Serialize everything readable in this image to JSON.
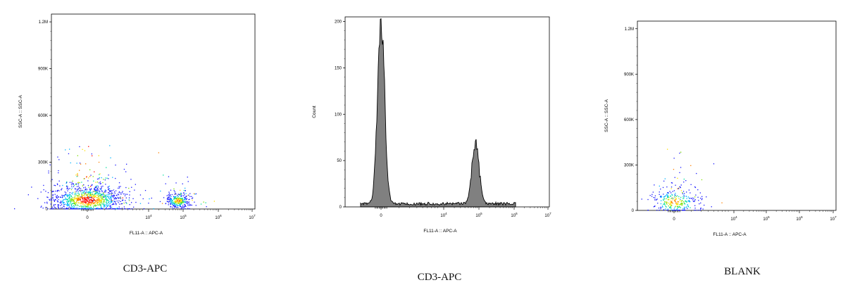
{
  "chart_data": [
    {
      "type": "scatter",
      "title": "CD3-APC",
      "xlabel": "FL11-A :: APC-A",
      "ylabel": "SSC-A :: SSC-A",
      "x_scale": "biexponential",
      "xlim": [
        -2000,
        10000000
      ],
      "ylim": [
        0,
        1250000
      ],
      "x_ticks": [
        {
          "value": 0,
          "base": "0",
          "exp": ""
        },
        {
          "value": 10000,
          "base": "10",
          "exp": "4"
        },
        {
          "value": 100000,
          "base": "10",
          "exp": "5"
        },
        {
          "value": 1000000,
          "base": "10",
          "exp": "6"
        },
        {
          "value": 10000000,
          "base": "10",
          "exp": "7"
        }
      ],
      "y_ticks": [
        {
          "value": 0,
          "label": "0"
        },
        {
          "value": 300000,
          "label": "300K"
        },
        {
          "value": 600000,
          "label": "600K"
        },
        {
          "value": 900000,
          "label": "900K"
        },
        {
          "value": 1200000,
          "label": "1.2M"
        }
      ],
      "populations": [
        {
          "name": "",
          "x_center": 0,
          "y_center": 60000,
          "count": 1100,
          "x_spread": 0.55,
          "y_spread": 45000
        },
        {
          "name": "",
          "x_center": 70000,
          "y_center": 55000,
          "count": 320,
          "x_spread": 0.18,
          "y_spread": 25000
        }
      ],
      "color_scale": [
        "#1a1aff",
        "#00b4ff",
        "#00e0a0",
        "#7ee000",
        "#ffe000",
        "#ff8000",
        "#ff0000"
      ],
      "grid": false
    },
    {
      "type": "area",
      "title": "CD3-APC",
      "xlabel": "FL11-A :: APC-A",
      "ylabel": "Count",
      "x_scale": "biexponential",
      "xlim": [
        -2000,
        10000000
      ],
      "ylim": [
        0,
        205
      ],
      "x_ticks": [
        {
          "value": 0,
          "base": "0",
          "exp": ""
        },
        {
          "value": 10000,
          "base": "10",
          "exp": "4"
        },
        {
          "value": 100000,
          "base": "10",
          "exp": "5"
        },
        {
          "value": 1000000,
          "base": "10",
          "exp": "6"
        },
        {
          "value": 10000000,
          "base": "10",
          "exp": "7"
        }
      ],
      "y_ticks": [
        {
          "value": 0,
          "label": "0"
        },
        {
          "value": 50,
          "label": "50"
        },
        {
          "value": 100,
          "label": "100"
        },
        {
          "value": 150,
          "label": "150"
        },
        {
          "value": 200,
          "label": "200"
        }
      ],
      "peaks": [
        {
          "x_center": 0,
          "height": 200,
          "width": 0.1
        },
        {
          "x_center": 80000,
          "height": 66,
          "width": 0.1
        }
      ],
      "fill_color": "#808080",
      "grid": false
    },
    {
      "type": "scatter",
      "title": "BLANK",
      "xlabel": "FL11-A :: APC-A",
      "ylabel": "SSC-A :: SSC-A",
      "x_scale": "biexponential",
      "xlim": [
        -2000,
        10000000
      ],
      "ylim": [
        0,
        1250000
      ],
      "x_ticks": [
        {
          "value": 0,
          "base": "0",
          "exp": ""
        },
        {
          "value": 10000,
          "base": "10",
          "exp": "4"
        },
        {
          "value": 100000,
          "base": "10",
          "exp": "5"
        },
        {
          "value": 1000000,
          "base": "10",
          "exp": "6"
        },
        {
          "value": 10000000,
          "base": "10",
          "exp": "7"
        }
      ],
      "y_ticks": [
        {
          "value": 0,
          "label": "0"
        },
        {
          "value": 300000,
          "label": "300K"
        },
        {
          "value": 600000,
          "label": "600K"
        },
        {
          "value": 900000,
          "label": "900K"
        },
        {
          "value": 1200000,
          "label": "1.2M"
        }
      ],
      "populations": [
        {
          "name": "",
          "x_center": 0,
          "y_center": 60000,
          "count": 320,
          "x_spread": 0.4,
          "y_spread": 45000
        }
      ],
      "color_scale": [
        "#1a1aff",
        "#00b4ff",
        "#00e0a0",
        "#7ee000",
        "#ffe000",
        "#ff8000",
        "#ff0000"
      ],
      "grid": false
    }
  ]
}
